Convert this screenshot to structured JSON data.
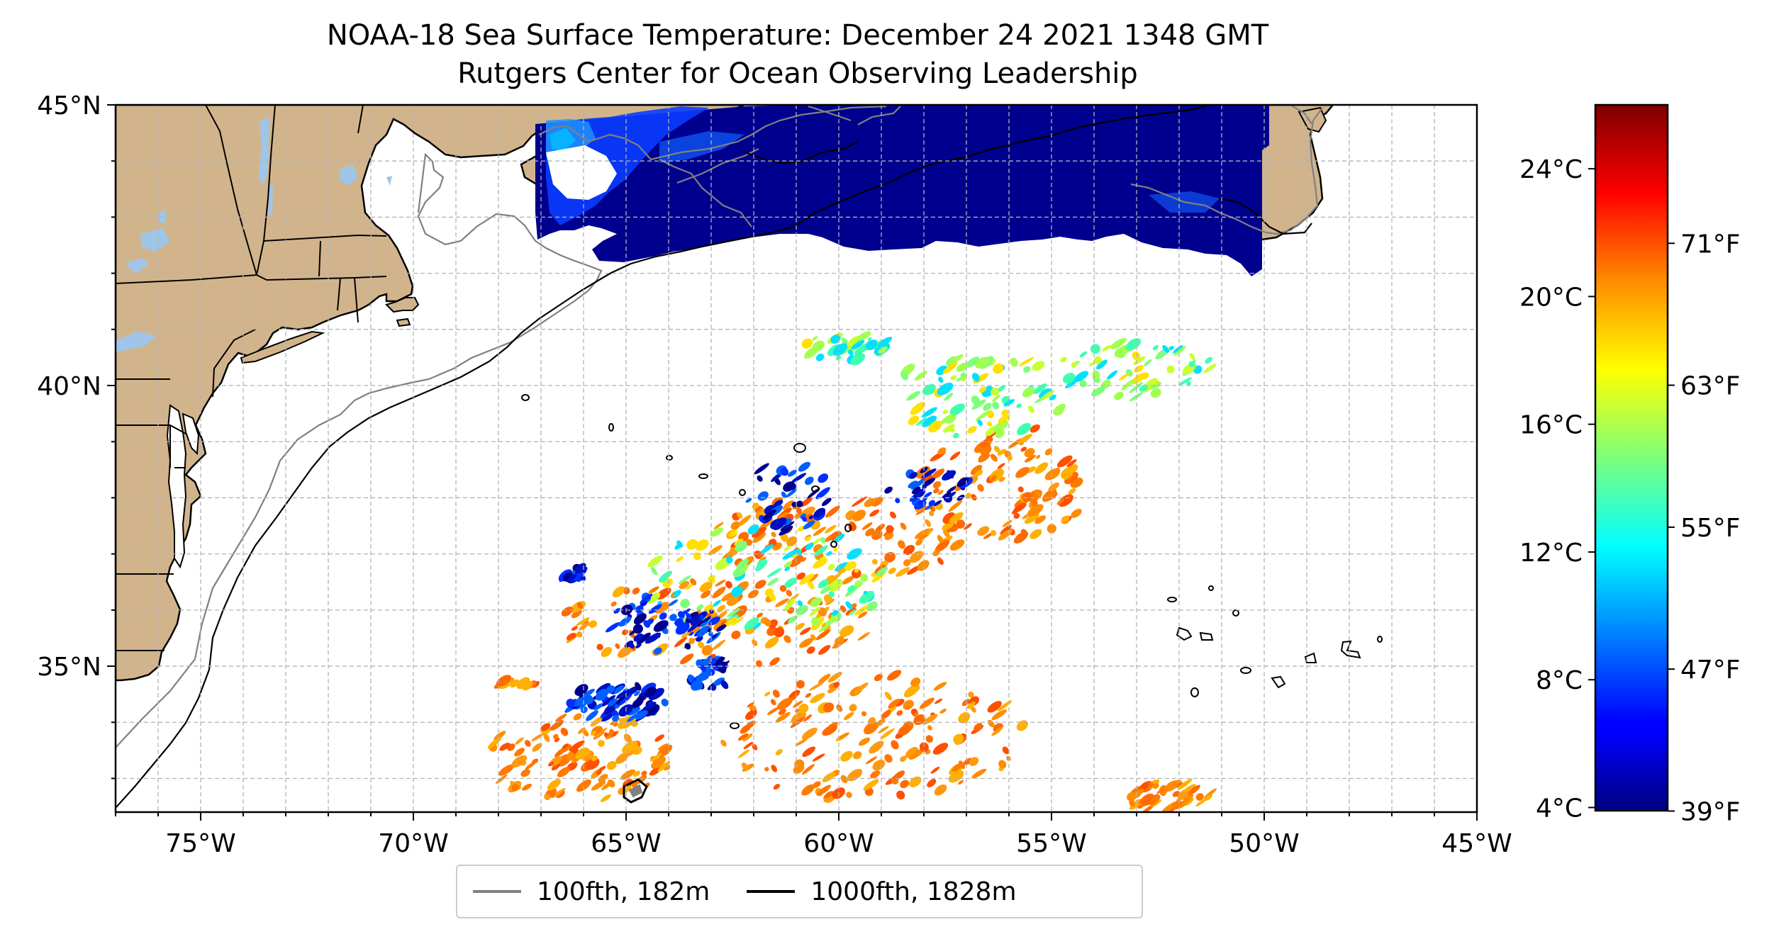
{
  "title": "NOAA-18 Sea Surface Temperature: December 24 2021 1348 GMT",
  "subtitle": "Rutgers Center for Ocean Observing Leadership",
  "map": {
    "extent": {
      "lon": [
        -77,
        -45
      ],
      "lat": [
        32.4,
        45
      ]
    },
    "lat_ticks": [
      {
        "value": 45,
        "label": "45°N"
      },
      {
        "value": 40,
        "label": "40°N"
      },
      {
        "value": 35,
        "label": "35°N"
      }
    ],
    "lon_ticks": [
      {
        "value": -75,
        "label": "75°W"
      },
      {
        "value": -70,
        "label": "70°W"
      },
      {
        "value": -65,
        "label": "65°W"
      },
      {
        "value": -60,
        "label": "60°W"
      },
      {
        "value": -55,
        "label": "55°W"
      },
      {
        "value": -50,
        "label": "50°W"
      },
      {
        "value": -45,
        "label": "45°W"
      }
    ],
    "gridlines": true,
    "land_color": "#d2b48c",
    "lake_color": "#9fc5e8"
  },
  "legend": {
    "placement": "bottom-center",
    "items": [
      {
        "label": "100fth, 182m",
        "color": "#808080"
      },
      {
        "label": "1000fth, 1828m",
        "color": "#000000"
      }
    ]
  },
  "colorbar": {
    "colormap": "jet",
    "range_c": [
      3.9,
      26
    ],
    "celsius_ticks": [
      {
        "value": 4,
        "label": "4°C"
      },
      {
        "value": 8,
        "label": "8°C"
      },
      {
        "value": 12,
        "label": "12°C"
      },
      {
        "value": 16,
        "label": "16°C"
      },
      {
        "value": 20,
        "label": "20°C"
      },
      {
        "value": 24,
        "label": "24°C"
      }
    ],
    "fahrenheit_ticks": [
      {
        "value": 39,
        "label": "39°F"
      },
      {
        "value": 47,
        "label": "47°F"
      },
      {
        "value": 55,
        "label": "55°F"
      },
      {
        "value": 63,
        "label": "63°F"
      },
      {
        "value": 71,
        "label": "71°F"
      }
    ]
  }
}
